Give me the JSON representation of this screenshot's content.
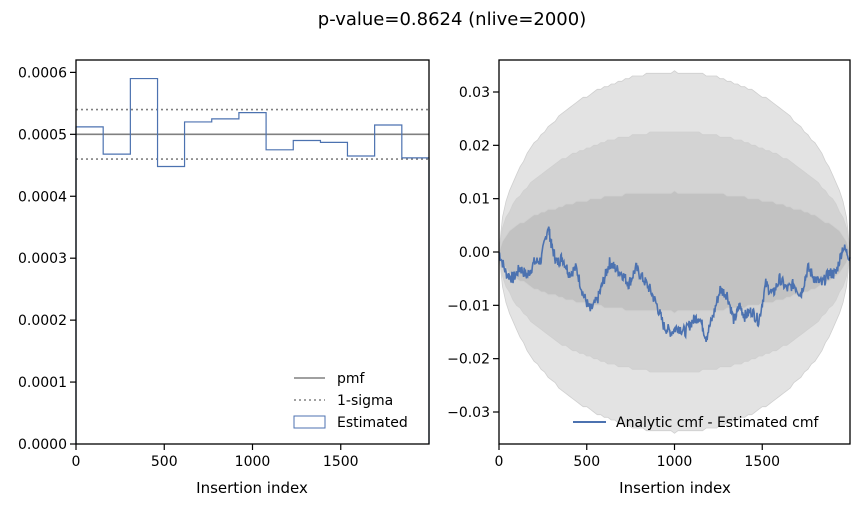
{
  "figure": {
    "title": "p-value=0.8624 (nlive=2000)"
  },
  "colors": {
    "estimated": "#4c72b0",
    "pmf": "#808080",
    "band_outer": "#e3e3e3",
    "band_mid": "#d3d3d3",
    "band_inner": "#c2c2c2"
  },
  "chart_data": [
    {
      "type": "line",
      "title": "",
      "xlabel": "Insertion index",
      "ylabel": "",
      "xlim": [
        0,
        2000
      ],
      "ylim": [
        0,
        0.00062
      ],
      "xticks": [
        0,
        500,
        1000,
        1500
      ],
      "xtick_labels": [
        "0",
        "500",
        "1000",
        "1500"
      ],
      "yticks": [
        0,
        0.0001,
        0.0002,
        0.0003,
        0.0004,
        0.0005,
        0.0006
      ],
      "ytick_labels": [
        "0.0000",
        "0.0001",
        "0.0002",
        "0.0003",
        "0.0004",
        "0.0005",
        "0.0006"
      ],
      "pmf": 0.0005,
      "sigma_lines": [
        0.00046,
        0.00054
      ],
      "hist_edges": [
        0,
        154,
        308,
        462,
        615,
        769,
        923,
        1077,
        1231,
        1385,
        1538,
        1692,
        1846,
        2000
      ],
      "hist_values": [
        0.000512,
        0.000468,
        0.00059,
        0.000448,
        0.00052,
        0.000525,
        0.000535,
        0.000475,
        0.00049,
        0.000487,
        0.000465,
        0.000515,
        0.000462
      ],
      "legend": {
        "position": "lower-right",
        "entries": [
          "pmf",
          "1-sigma",
          "Estimated"
        ]
      }
    },
    {
      "type": "line",
      "title": "",
      "xlabel": "Insertion index",
      "ylabel": "",
      "xlim": [
        0,
        2000
      ],
      "ylim": [
        -0.036,
        0.036
      ],
      "xticks": [
        0,
        500,
        1000,
        1500
      ],
      "xtick_labels": [
        "0",
        "500",
        "1000",
        "1500"
      ],
      "yticks": [
        -0.03,
        -0.02,
        -0.01,
        0.0,
        0.01,
        0.02,
        0.03
      ],
      "ytick_labels": [
        "−0.03",
        "−0.02",
        "−0.01",
        "0.00",
        "0.01",
        "0.02",
        "0.03"
      ],
      "band_sigmas": {
        "inner": 0.01125,
        "middle": 0.0225,
        "outer": 0.03375
      },
      "series": [
        {
          "name": "Analytic cmf - Estimated cmf",
          "x": [
            0,
            40,
            80,
            120,
            160,
            200,
            240,
            280,
            300,
            330,
            360,
            400,
            440,
            480,
            520,
            560,
            600,
            630,
            660,
            700,
            740,
            780,
            820,
            860,
            900,
            940,
            980,
            1020,
            1060,
            1100,
            1140,
            1180,
            1220,
            1260,
            1300,
            1340,
            1370,
            1400,
            1440,
            1480,
            1520,
            1560,
            1600,
            1640,
            1680,
            1720,
            1760,
            1800,
            1840,
            1880,
            1920,
            1960,
            2000
          ],
          "y": [
            0.0,
            -0.004,
            -0.005,
            -0.003,
            -0.0045,
            -0.002,
            -0.0015,
            0.005,
            0.001,
            -0.002,
            -0.001,
            -0.004,
            -0.003,
            -0.008,
            -0.011,
            -0.009,
            -0.005,
            -0.002,
            -0.003,
            -0.004,
            -0.006,
            -0.003,
            -0.005,
            -0.007,
            -0.01,
            -0.014,
            -0.015,
            -0.014,
            -0.015,
            -0.013,
            -0.012,
            -0.016,
            -0.012,
            -0.007,
            -0.008,
            -0.013,
            -0.01,
            -0.012,
            -0.011,
            -0.013,
            -0.006,
            -0.008,
            -0.005,
            -0.007,
            -0.006,
            -0.008,
            -0.003,
            -0.005,
            -0.006,
            -0.004,
            -0.004,
            0.001,
            -0.001
          ]
        }
      ],
      "legend": {
        "position": "lower-right",
        "entries": [
          "Analytic cmf - Estimated cmf"
        ]
      }
    }
  ]
}
